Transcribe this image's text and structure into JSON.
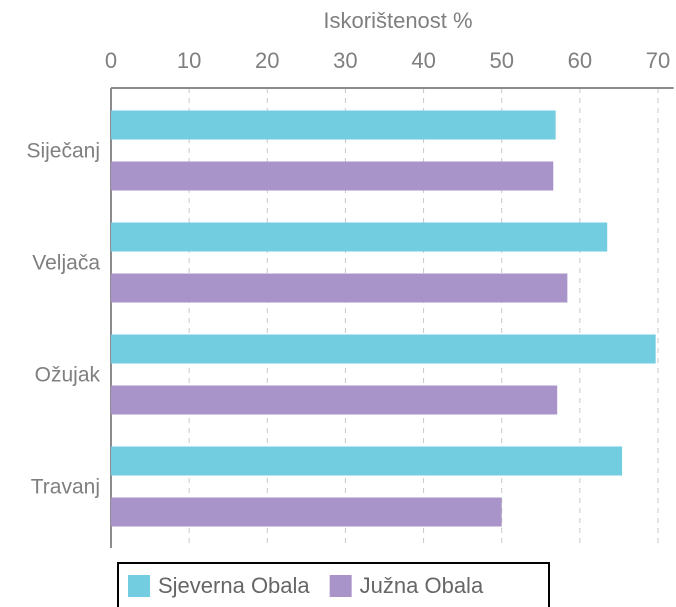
{
  "chart_data": {
    "type": "bar",
    "orientation": "horizontal",
    "x_label": "Iskorištenost %",
    "categories": [
      "Siječanj",
      "Veljača",
      "Ožujak",
      "Travanj"
    ],
    "series": [
      {
        "name": "Sjeverna Obala",
        "color": "#72cde0",
        "values": [
          56.9,
          63.5,
          69.7,
          65.4
        ]
      },
      {
        "name": "Južna Obala",
        "color": "#a994c9",
        "values": [
          56.6,
          58.4,
          57.1,
          50.0
        ]
      }
    ],
    "xlim": [
      0,
      72
    ],
    "xticks": [
      0,
      10,
      20,
      30,
      40,
      50,
      60,
      70
    ],
    "grid": true,
    "legend": "bottom"
  }
}
